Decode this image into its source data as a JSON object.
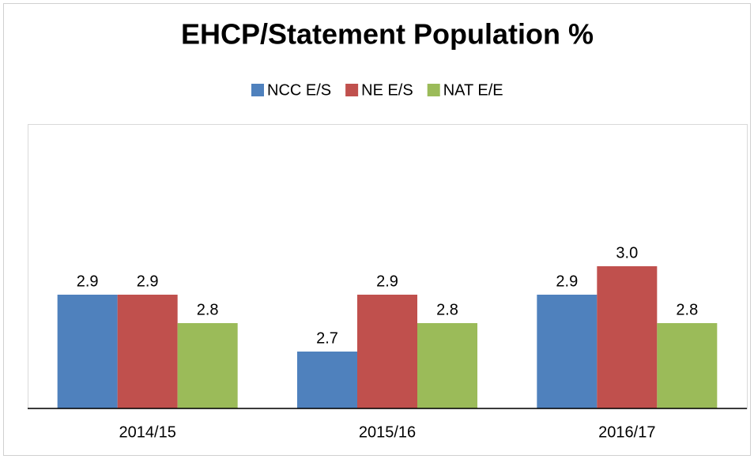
{
  "chart_data": {
    "type": "bar",
    "title": "EHCP/Statement Population %",
    "categories": [
      "2014/15",
      "2015/16",
      "2016/17"
    ],
    "series": [
      {
        "name": "NCC E/S",
        "color": "#4f81bd",
        "values": [
          2.9,
          2.7,
          2.9
        ],
        "value_labels": [
          "2.9",
          "2.7",
          "2.9"
        ]
      },
      {
        "name": "NE E/S",
        "color": "#c0504d",
        "values": [
          2.9,
          2.9,
          3.0
        ],
        "value_labels": [
          "2.9",
          "2.9",
          "3.0"
        ]
      },
      {
        "name": "NAT E/E",
        "color": "#9bbb59",
        "values": [
          2.8,
          2.8,
          2.8
        ],
        "value_labels": [
          "2.8",
          "2.8",
          "2.8"
        ]
      }
    ],
    "ylim": [
      2.5,
      3.5
    ],
    "legend": "top"
  }
}
